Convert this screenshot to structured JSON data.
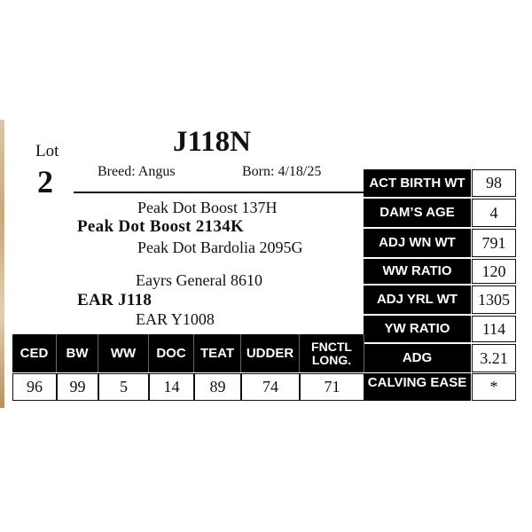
{
  "lot": {
    "label": "Lot",
    "number": "2"
  },
  "tag": "J118N",
  "breed": "Breed: Angus",
  "born": "Born: 4/18/25",
  "pedigree": {
    "sire_sire": "Peak Dot Boost 137H",
    "sire": "Peak Dot Boost 2134K",
    "sire_dam": "Peak Dot Bardolia 2095G",
    "dam_sire": "Eayrs General 8610",
    "dam": "EAR J118",
    "dam_dam": "EAR Y1008"
  },
  "stats": [
    {
      "label": "ACT BIRTH WT",
      "value": "98"
    },
    {
      "label": "DAM’S AGE",
      "value": "4"
    },
    {
      "label": "ADJ WN WT",
      "value": "791"
    },
    {
      "label": "WW RATIO",
      "value": "120"
    },
    {
      "label": "ADJ YRL WT",
      "value": "1305"
    },
    {
      "label": "YW RATIO",
      "value": "114"
    },
    {
      "label": "ADG",
      "value": "3.21"
    },
    {
      "label": "CALVING EASE",
      "value": "*"
    }
  ],
  "epds": {
    "headers": [
      "CED",
      "BW",
      "WW",
      "DOC",
      "TEAT",
      "UDDER",
      "FNCTL LONG."
    ],
    "values": [
      "96",
      "99",
      "5",
      "14",
      "89",
      "74",
      "71"
    ]
  }
}
